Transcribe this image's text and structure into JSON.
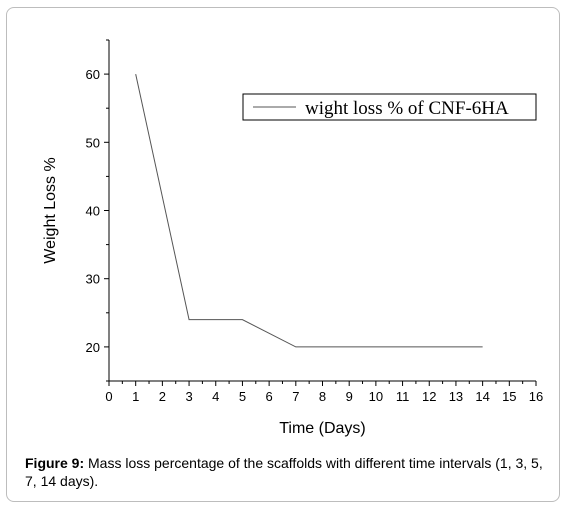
{
  "chart_data": {
    "type": "line",
    "xlabel": "Time (Days)",
    "ylabel": "Weight Loss %",
    "xlim": [
      0,
      16
    ],
    "ylim": [
      15,
      65
    ],
    "xticks": [
      0,
      1,
      2,
      3,
      4,
      5,
      6,
      7,
      8,
      9,
      10,
      11,
      12,
      13,
      14,
      15,
      16
    ],
    "yticks": [
      20,
      30,
      40,
      50,
      60
    ],
    "grid": false,
    "legend_position": "top-right",
    "series": [
      {
        "name": "wight loss % of CNF-6HA",
        "x": [
          1,
          3,
          5,
          7,
          14
        ],
        "y": [
          60,
          24,
          24,
          20,
          20
        ],
        "color": "#555555"
      }
    ]
  },
  "caption": {
    "label": "Figure 9:",
    "text": " Mass loss percentage of the scaffolds with different time intervals (1, 3, 5, 7, 14 days)."
  }
}
